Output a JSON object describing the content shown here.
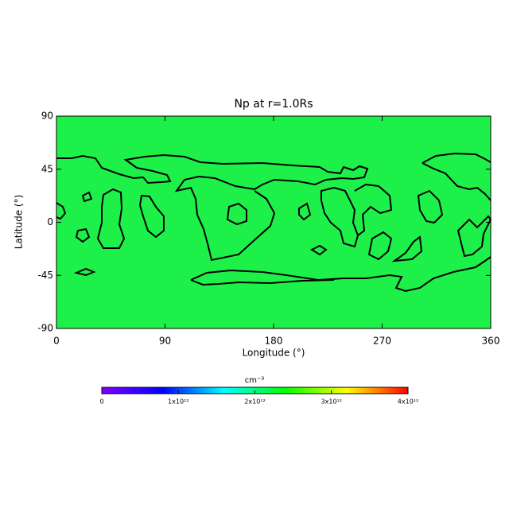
{
  "chart_data": {
    "type": "heatmap",
    "title": "Np at r=1.0Rs",
    "x_label": "Longitude (°)",
    "y_label": "Latitude (°)",
    "xlim": [
      0,
      360
    ],
    "xticks": [
      0,
      90,
      180,
      270,
      360
    ],
    "ylim": [
      -90,
      90
    ],
    "yticks": [
      -90,
      -45,
      0,
      45,
      90
    ],
    "fill_color": "#1ef04a",
    "colorbar": {
      "label": "cm⁻³",
      "clim": [
        0,
        4000000000000
      ],
      "colors": [
        "#7f00ff",
        "#0000ff",
        "#00ffff",
        "#00ff00",
        "#ffff00",
        "#ff0000"
      ],
      "ticks": [
        0,
        {
          "value": 1000000000000,
          "label": "1x10¹²"
        },
        {
          "value": 2000000000000,
          "label": "2x10¹²"
        },
        {
          "value": 3000000000000,
          "label": "3x10¹²"
        },
        {
          "value": 4000000000000,
          "label": "4x10¹²"
        }
      ]
    }
  }
}
